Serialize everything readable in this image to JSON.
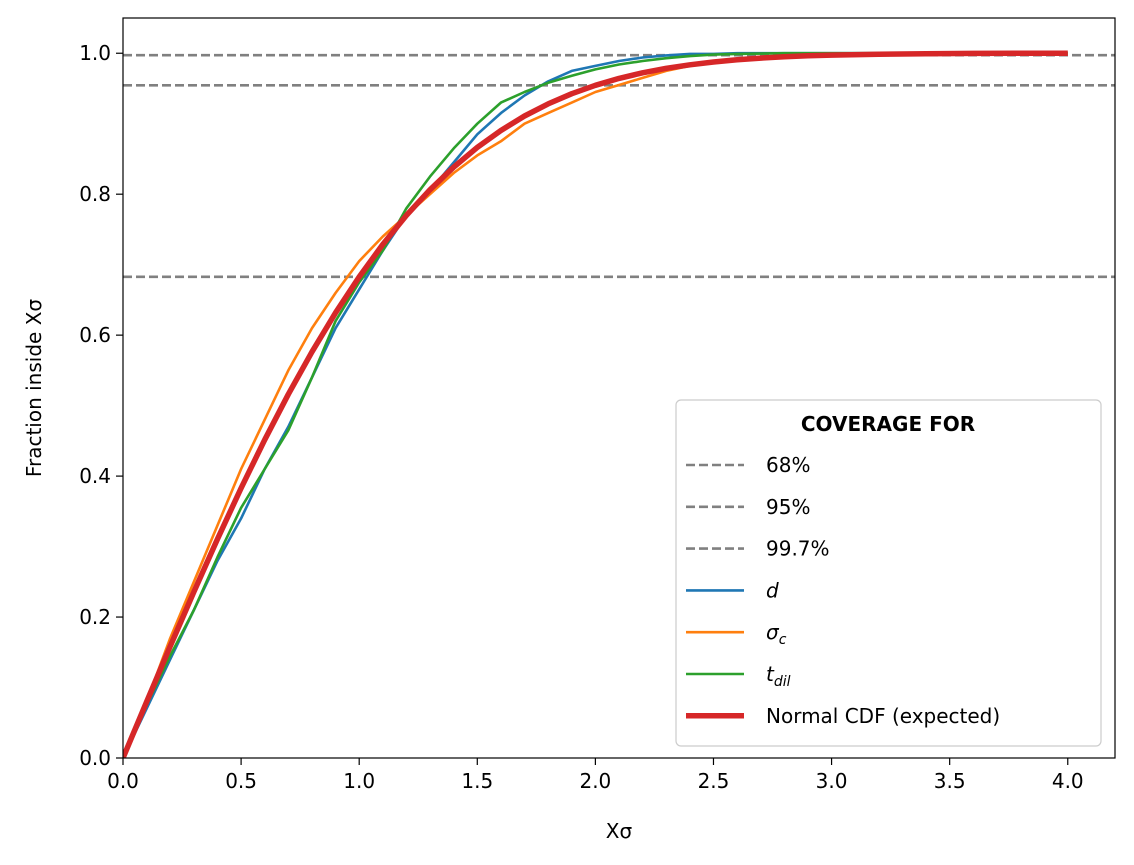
{
  "chart_data": {
    "type": "line",
    "xlabel": "Xσ",
    "ylabel": "Fraction inside Xσ",
    "xlim": [
      0,
      4.2
    ],
    "ylim": [
      0,
      1.05
    ],
    "xticks": [
      0.0,
      0.5,
      1.0,
      1.5,
      2.0,
      2.5,
      3.0,
      3.5,
      4.0
    ],
    "xtick_labels": [
      "0.0",
      "0.5",
      "1.0",
      "1.5",
      "2.0",
      "2.5",
      "3.0",
      "3.5",
      "4.0"
    ],
    "yticks": [
      0.0,
      0.2,
      0.4,
      0.6,
      0.8,
      1.0
    ],
    "ytick_labels": [
      "0.0",
      "0.2",
      "0.4",
      "0.6",
      "0.8",
      "1.0"
    ],
    "grid": false,
    "legend": {
      "title": "COVERAGE FOR",
      "placement": "lower-right"
    },
    "hlines": [
      {
        "name": "68%",
        "y": 0.6827,
        "color": "#808080",
        "style": "dashed"
      },
      {
        "name": "95%",
        "y": 0.9545,
        "color": "#808080",
        "style": "dashed"
      },
      {
        "name": "99.7%",
        "y": 0.9973,
        "color": "#808080",
        "style": "dashed"
      }
    ],
    "series": [
      {
        "name": "d",
        "name_base": "d",
        "name_sub": "",
        "color": "#1f77b4",
        "x": [
          0.0,
          0.1,
          0.2,
          0.3,
          0.4,
          0.5,
          0.6,
          0.7,
          0.8,
          0.9,
          1.0,
          1.1,
          1.2,
          1.3,
          1.4,
          1.5,
          1.6,
          1.7,
          1.8,
          1.9,
          2.0,
          2.1,
          2.2,
          2.3,
          2.4,
          2.5,
          2.6,
          2.8,
          3.0,
          3.2,
          3.5,
          4.0
        ],
        "y": [
          0.0,
          0.07,
          0.14,
          0.21,
          0.28,
          0.34,
          0.41,
          0.47,
          0.54,
          0.61,
          0.665,
          0.72,
          0.77,
          0.805,
          0.845,
          0.885,
          0.915,
          0.94,
          0.96,
          0.975,
          0.982,
          0.989,
          0.994,
          0.997,
          0.999,
          0.999,
          1.0,
          1.0,
          1.0,
          1.0,
          1.0,
          1.0
        ]
      },
      {
        "name": "σc",
        "name_base": "σ",
        "name_sub": "c",
        "color": "#ff7f0e",
        "x": [
          0.0,
          0.1,
          0.2,
          0.3,
          0.4,
          0.5,
          0.6,
          0.7,
          0.8,
          0.9,
          1.0,
          1.1,
          1.2,
          1.3,
          1.4,
          1.5,
          1.6,
          1.7,
          1.8,
          1.9,
          2.0,
          2.1,
          2.2,
          2.3,
          2.4,
          2.5,
          2.6,
          2.8,
          3.0,
          3.2,
          3.5,
          4.0
        ],
        "y": [
          0.0,
          0.08,
          0.17,
          0.25,
          0.33,
          0.41,
          0.48,
          0.55,
          0.61,
          0.66,
          0.705,
          0.74,
          0.77,
          0.8,
          0.83,
          0.855,
          0.875,
          0.9,
          0.915,
          0.93,
          0.945,
          0.955,
          0.965,
          0.975,
          0.982,
          0.988,
          0.992,
          0.996,
          0.998,
          0.999,
          1.0,
          1.0
        ]
      },
      {
        "name": "tdil",
        "name_base": "t",
        "name_sub": "dil",
        "color": "#2ca02c",
        "x": [
          0.0,
          0.1,
          0.2,
          0.3,
          0.4,
          0.5,
          0.6,
          0.7,
          0.8,
          0.9,
          1.0,
          1.1,
          1.2,
          1.3,
          1.4,
          1.5,
          1.6,
          1.7,
          1.8,
          1.9,
          2.0,
          2.1,
          2.2,
          2.3,
          2.4,
          2.5,
          2.6,
          2.8,
          3.0,
          3.2,
          3.5,
          4.0
        ],
        "y": [
          0.0,
          0.075,
          0.145,
          0.21,
          0.285,
          0.355,
          0.41,
          0.465,
          0.54,
          0.62,
          0.675,
          0.72,
          0.78,
          0.825,
          0.865,
          0.9,
          0.93,
          0.945,
          0.958,
          0.968,
          0.977,
          0.984,
          0.989,
          0.993,
          0.996,
          0.998,
          0.999,
          1.0,
          1.0,
          1.0,
          1.0,
          1.0
        ]
      },
      {
        "name": "Normal CDF (expected)",
        "name_base": "Normal CDF (expected)",
        "name_sub": "",
        "color": "#d62728",
        "thick": true,
        "x": [
          0.0,
          0.1,
          0.2,
          0.3,
          0.4,
          0.5,
          0.6,
          0.7,
          0.8,
          0.9,
          1.0,
          1.1,
          1.2,
          1.3,
          1.4,
          1.5,
          1.6,
          1.7,
          1.8,
          1.9,
          2.0,
          2.1,
          2.2,
          2.3,
          2.4,
          2.5,
          2.6,
          2.7,
          2.8,
          2.9,
          3.0,
          3.2,
          3.4,
          3.6,
          3.8,
          4.0
        ],
        "y": [
          0.0,
          0.0797,
          0.1585,
          0.2358,
          0.3108,
          0.3829,
          0.4515,
          0.5161,
          0.5763,
          0.6319,
          0.6827,
          0.7287,
          0.7699,
          0.8064,
          0.8385,
          0.8664,
          0.8904,
          0.9109,
          0.9281,
          0.9426,
          0.9545,
          0.9643,
          0.9722,
          0.9786,
          0.9836,
          0.9876,
          0.9907,
          0.9931,
          0.9949,
          0.9963,
          0.9973,
          0.9986,
          0.9993,
          0.9997,
          0.9999,
          0.9999
        ]
      }
    ]
  }
}
